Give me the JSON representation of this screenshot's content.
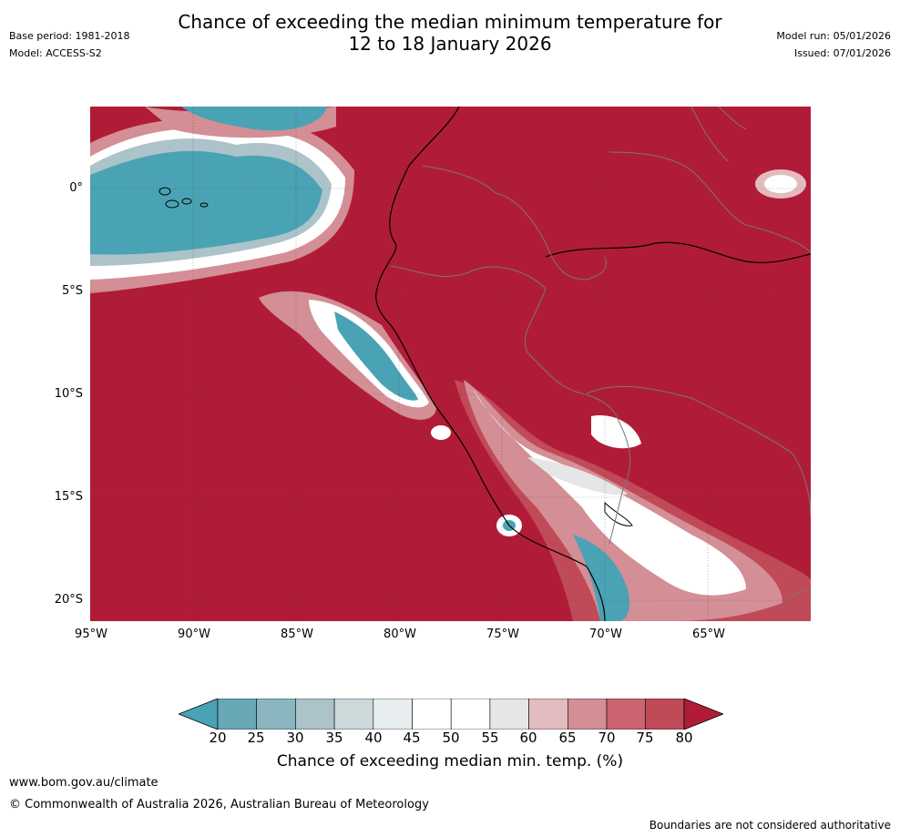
{
  "header": {
    "title_line1": "Chance of exceeding the median minimum temperature for",
    "title_line2": "12 to 18 January 2026",
    "base_period": "Base period: 1981-2018",
    "model": "Model: ACCESS-S2",
    "model_run": "Model run: 05/01/2026",
    "issued": "Issued: 07/01/2026"
  },
  "map": {
    "region": "Western South America and eastern Pacific",
    "lat_labels": [
      "0°",
      "5°S",
      "10°S",
      "15°S",
      "20°S"
    ],
    "lon_labels": [
      "95°W",
      "90°W",
      "85°W",
      "80°W",
      "75°W",
      "70°W",
      "65°W"
    ],
    "colors": {
      "above80": "#b01c38",
      "c75_80": "#c04a58",
      "c70_75": "#c96470",
      "c65_70": "#d48e96",
      "c60_65": "#e2bbc0",
      "c55_60": "#e6e6e6",
      "c45_55": "#ffffff",
      "c40_45": "#e8edf0",
      "c35_40": "#cdd8db",
      "c30_35": "#abc3c9",
      "c25_30": "#8ab6c1",
      "c20_25": "#68a7b6",
      "below20": "#4aa3b4",
      "coast": "#000000",
      "border": "#777777"
    }
  },
  "colorbar": {
    "ticks": [
      "20",
      "25",
      "30",
      "35",
      "40",
      "45",
      "50",
      "55",
      "60",
      "65",
      "70",
      "75",
      "80"
    ],
    "label": "Chance of exceeding median min. temp. (%)"
  },
  "footer": {
    "website": "www.bom.gov.au/climate",
    "copyright": "© Commonwealth of Australia 2026, Australian Bureau of Meteorology",
    "disclaimer": "Boundaries are not considered authoritative"
  }
}
